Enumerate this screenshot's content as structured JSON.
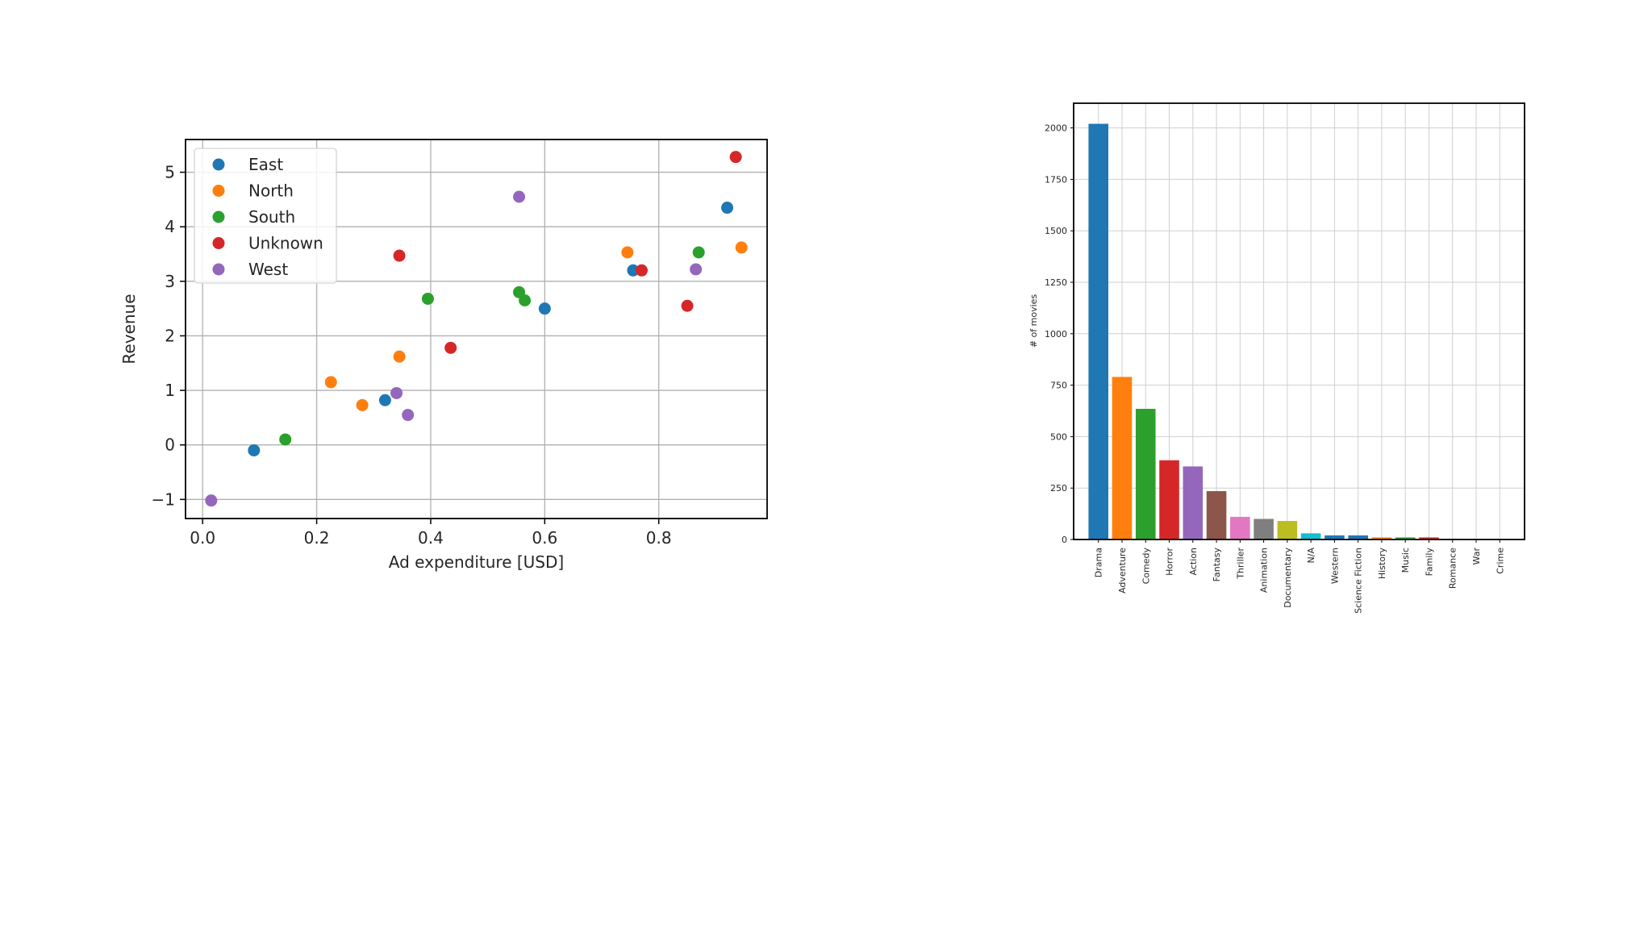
{
  "chart_data": [
    {
      "type": "scatter",
      "xlabel": "Ad expenditure [USD]",
      "ylabel": "Revenue",
      "xlim": [
        -0.03,
        0.99
      ],
      "ylim": [
        -1.35,
        5.6
      ],
      "xticks": [
        0.0,
        0.2,
        0.4,
        0.6,
        0.8
      ],
      "xtick_labels": [
        "0.0",
        "0.2",
        "0.4",
        "0.6",
        "0.8"
      ],
      "yticks": [
        -1,
        0,
        1,
        2,
        3,
        4,
        5
      ],
      "ytick_labels": [
        "−1",
        "0",
        "1",
        "2",
        "3",
        "4",
        "5"
      ],
      "grid": true,
      "legend_position": "upper-left",
      "series": [
        {
          "name": "East",
          "color": "#1f77b4",
          "points": [
            [
              0.09,
              -0.1
            ],
            [
              0.32,
              0.82
            ],
            [
              0.6,
              2.5
            ],
            [
              0.755,
              3.2
            ],
            [
              0.92,
              4.35
            ]
          ]
        },
        {
          "name": "North",
          "color": "#ff7f0e",
          "points": [
            [
              0.225,
              1.15
            ],
            [
              0.28,
              0.73
            ],
            [
              0.345,
              1.62
            ],
            [
              0.745,
              3.53
            ],
            [
              0.945,
              3.62
            ]
          ]
        },
        {
          "name": "South",
          "color": "#2ca02c",
          "points": [
            [
              0.145,
              0.1
            ],
            [
              0.395,
              2.68
            ],
            [
              0.555,
              2.8
            ],
            [
              0.565,
              2.65
            ],
            [
              0.87,
              3.53
            ]
          ]
        },
        {
          "name": "Unknown",
          "color": "#d62728",
          "points": [
            [
              0.345,
              3.47
            ],
            [
              0.435,
              1.78
            ],
            [
              0.77,
              3.2
            ],
            [
              0.85,
              2.55
            ],
            [
              0.935,
              5.28
            ]
          ]
        },
        {
          "name": "West",
          "color": "#9467bd",
          "points": [
            [
              0.015,
              -1.02
            ],
            [
              0.34,
              0.95
            ],
            [
              0.36,
              0.55
            ],
            [
              0.555,
              4.55
            ],
            [
              0.865,
              3.22
            ]
          ]
        }
      ]
    },
    {
      "type": "bar",
      "ylabel": "# of movies",
      "ylim": [
        0,
        2120
      ],
      "yticks": [
        0,
        250,
        500,
        750,
        1000,
        1250,
        1500,
        1750,
        2000
      ],
      "ytick_labels": [
        "0",
        "250",
        "500",
        "750",
        "1000",
        "1250",
        "1500",
        "1750",
        "2000"
      ],
      "grid": true,
      "categories": [
        "Drama",
        "Adventure",
        "Comedy",
        "Horror",
        "Action",
        "Fantasy",
        "Thriller",
        "Animation",
        "Documentary",
        "N/A",
        "Western",
        "Science Fiction",
        "History",
        "Music",
        "Family",
        "Romance",
        "War",
        "Crime"
      ],
      "values": [
        2020,
        790,
        635,
        385,
        355,
        235,
        110,
        100,
        90,
        30,
        20,
        20,
        10,
        10,
        10,
        3,
        2,
        2
      ],
      "colors": [
        "#1f77b4",
        "#ff7f0e",
        "#2ca02c",
        "#d62728",
        "#9467bd",
        "#8c564b",
        "#e377c2",
        "#7f7f7f",
        "#bcbd22",
        "#17becf",
        "#1f77b4",
        "#1f77b4",
        "#ff7f0e",
        "#2ca02c",
        "#d62728",
        "#9467bd",
        "#8c564b",
        "#e377c2"
      ]
    }
  ]
}
